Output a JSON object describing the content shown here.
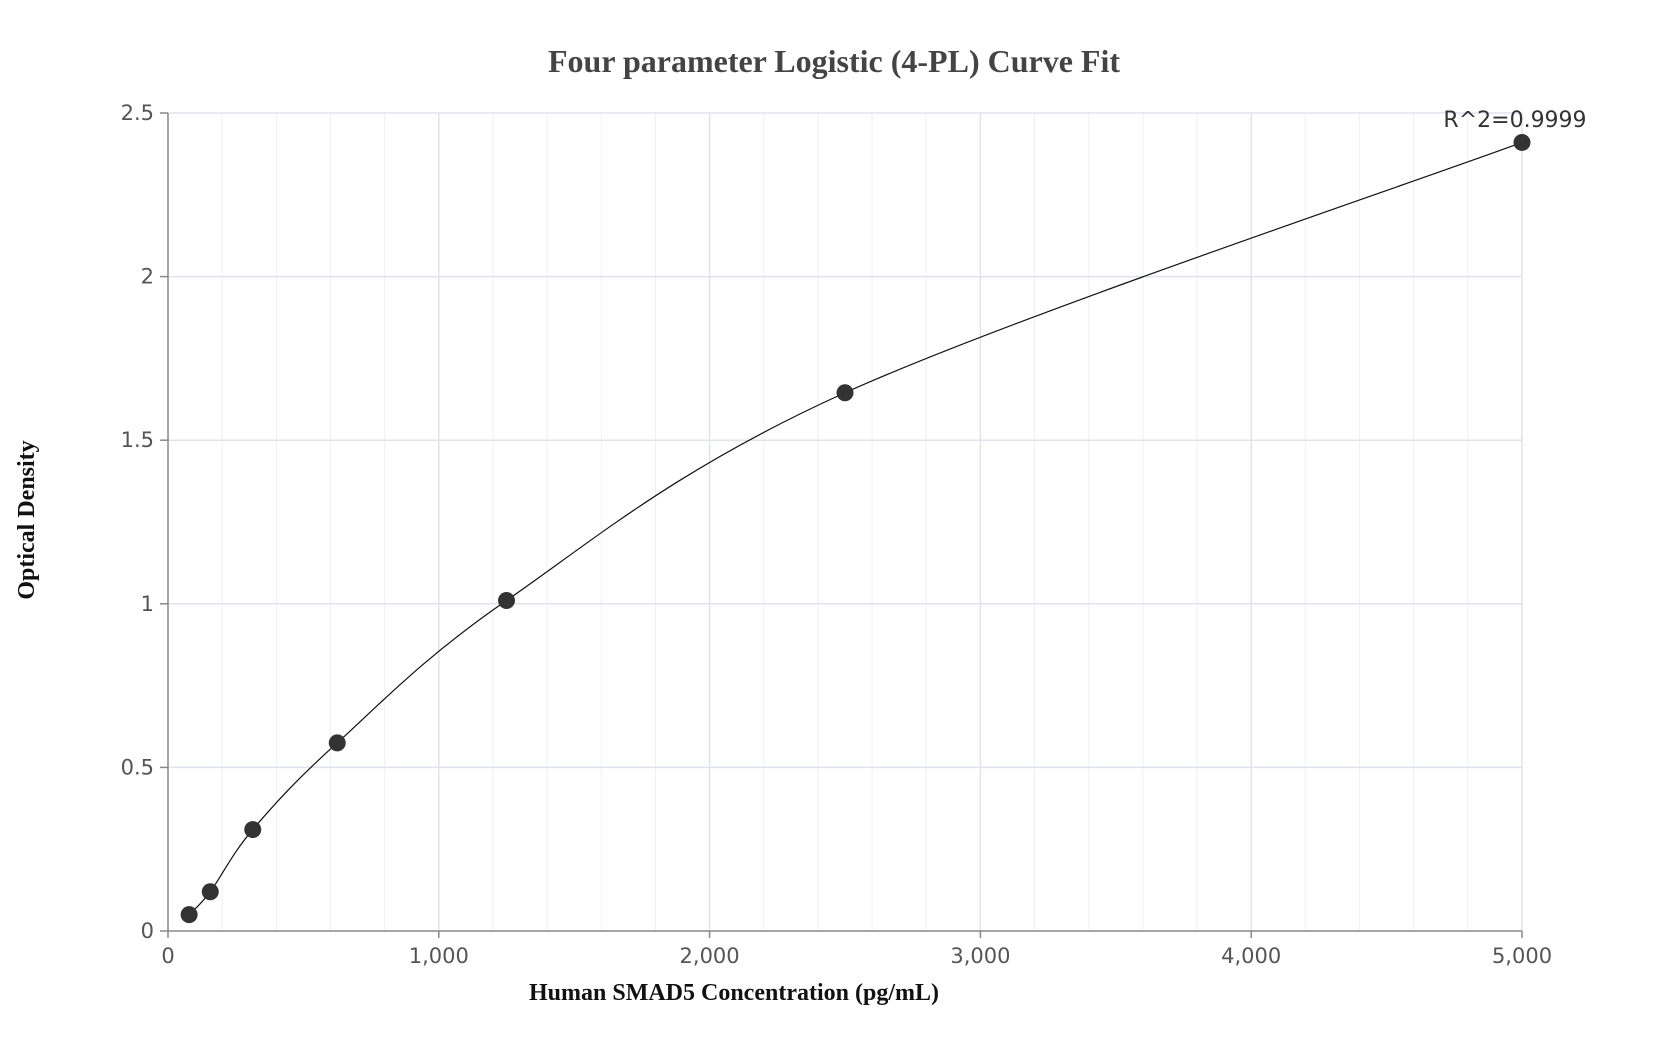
{
  "chart_data": {
    "type": "scatter",
    "title": "Four parameter Logistic (4-PL) Curve Fit",
    "xlabel": "Human SMAD5 Concentration (pg/mL)",
    "ylabel": "Optical Density",
    "xlim": [
      0,
      5000
    ],
    "ylim": [
      0,
      2.5
    ],
    "x_ticks": [
      {
        "value": 0,
        "label": "0"
      },
      {
        "value": 1000,
        "label": "1,000"
      },
      {
        "value": 2000,
        "label": "2,000"
      },
      {
        "value": 3000,
        "label": "3,000"
      },
      {
        "value": 4000,
        "label": "4,000"
      },
      {
        "value": 5000,
        "label": "5,000"
      }
    ],
    "y_ticks": [
      {
        "value": 0,
        "label": "0"
      },
      {
        "value": 0.5,
        "label": "0.5"
      },
      {
        "value": 1,
        "label": "1"
      },
      {
        "value": 1.5,
        "label": "1.5"
      },
      {
        "value": 2,
        "label": "2"
      },
      {
        "value": 2.5,
        "label": "2.5"
      }
    ],
    "x_minor_step": 200,
    "y_minor_step": 0.5,
    "grid": true,
    "points": [
      {
        "x": 78,
        "y": 0.05
      },
      {
        "x": 156,
        "y": 0.12
      },
      {
        "x": 313,
        "y": 0.31
      },
      {
        "x": 625,
        "y": 0.575
      },
      {
        "x": 1250,
        "y": 1.01
      },
      {
        "x": 2500,
        "y": 1.645
      },
      {
        "x": 5000,
        "y": 2.41
      }
    ],
    "annotation": "R^2=0.9999",
    "colors": {
      "marker": "#333333",
      "curve": "#111111",
      "major_grid": "#dfe3ee",
      "minor_grid": "#eef0f5",
      "axis": "#888888"
    }
  }
}
